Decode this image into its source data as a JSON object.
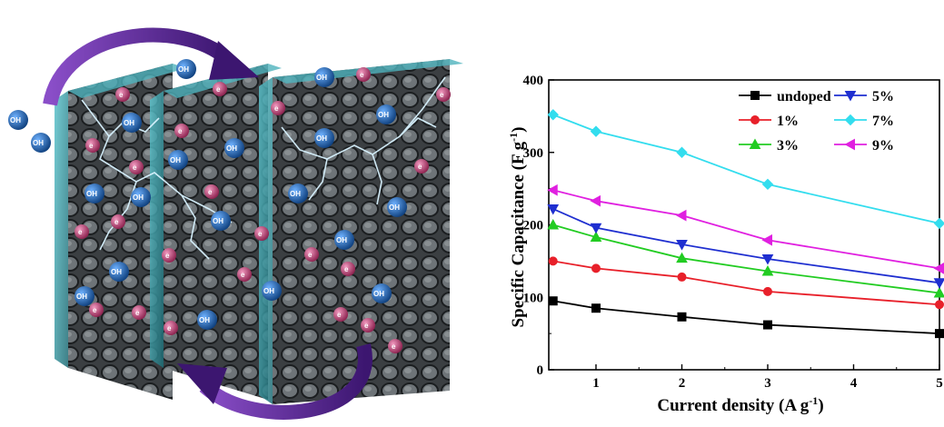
{
  "illustration": {
    "hydroxide_label": "OH",
    "electron_label": "e",
    "colors": {
      "frame": "#2a3236",
      "glass": "#3aa7b3",
      "arrow": "#5b2b8f",
      "ion": "#1f5fa8",
      "electron": "#b0386a",
      "lightning": "#cfeeff"
    }
  },
  "chart_data": {
    "type": "line",
    "xlabel_main": "Current density (A g",
    "xlabel_sup": "-1",
    "xlabel_end": ")",
    "ylabel_main": "Specific Capacitance (F g",
    "ylabel_sup": "-1",
    "ylabel_end": ")",
    "xlim": [
      0.45,
      5
    ],
    "ylim": [
      0,
      400
    ],
    "xticks": [
      "1",
      "2",
      "3",
      "4",
      "5"
    ],
    "yticks": [
      "0",
      "100",
      "200",
      "300",
      "400"
    ],
    "x": [
      0.5,
      1,
      2,
      3,
      5
    ],
    "series": [
      {
        "name": "undoped",
        "color": "#000000",
        "marker": "square",
        "values": [
          95,
          85,
          73,
          62,
          50
        ]
      },
      {
        "name": "1%",
        "color": "#e8202a",
        "marker": "circle",
        "values": [
          150,
          140,
          128,
          108,
          90
        ]
      },
      {
        "name": "3%",
        "color": "#22cc22",
        "marker": "triangle-up",
        "values": [
          200,
          183,
          154,
          136,
          106
        ]
      },
      {
        "name": "5%",
        "color": "#1f2fd0",
        "marker": "triangle-down",
        "values": [
          222,
          196,
          173,
          153,
          120
        ]
      },
      {
        "name": "7%",
        "color": "#33ddee",
        "marker": "diamond",
        "values": [
          352,
          329,
          300,
          256,
          202
        ]
      },
      {
        "name": "9%",
        "color": "#e020e0",
        "marker": "triangle-left",
        "values": [
          248,
          233,
          213,
          179,
          140
        ]
      }
    ],
    "legend_position": "top-right"
  }
}
